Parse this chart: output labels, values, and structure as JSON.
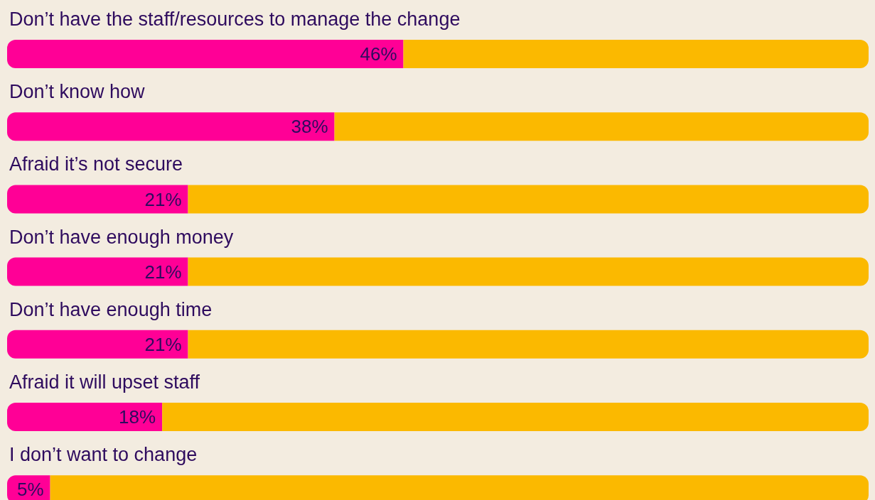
{
  "chart_data": {
    "type": "bar",
    "orientation": "horizontal",
    "stacked": true,
    "tick_labels": "y",
    "categories": [
      "Don’t have the staff/resources to manage the change",
      "Don’t know how",
      "Afraid it’s not secure",
      "Don’t have enough money",
      "Don’t have enough time",
      "Afraid it will upset staff",
      "I don’t want to change"
    ],
    "series": [
      {
        "color": "#ff0096",
        "values": [
          46,
          38,
          21,
          21,
          21,
          18,
          5
        ],
        "value_labels": [
          "46%",
          "38%",
          "21%",
          "21%",
          "21%",
          "18%",
          "5%"
        ]
      },
      {
        "color": "#fbb900",
        "values": [
          54,
          62,
          79,
          79,
          79,
          82,
          95
        ]
      }
    ]
  }
}
